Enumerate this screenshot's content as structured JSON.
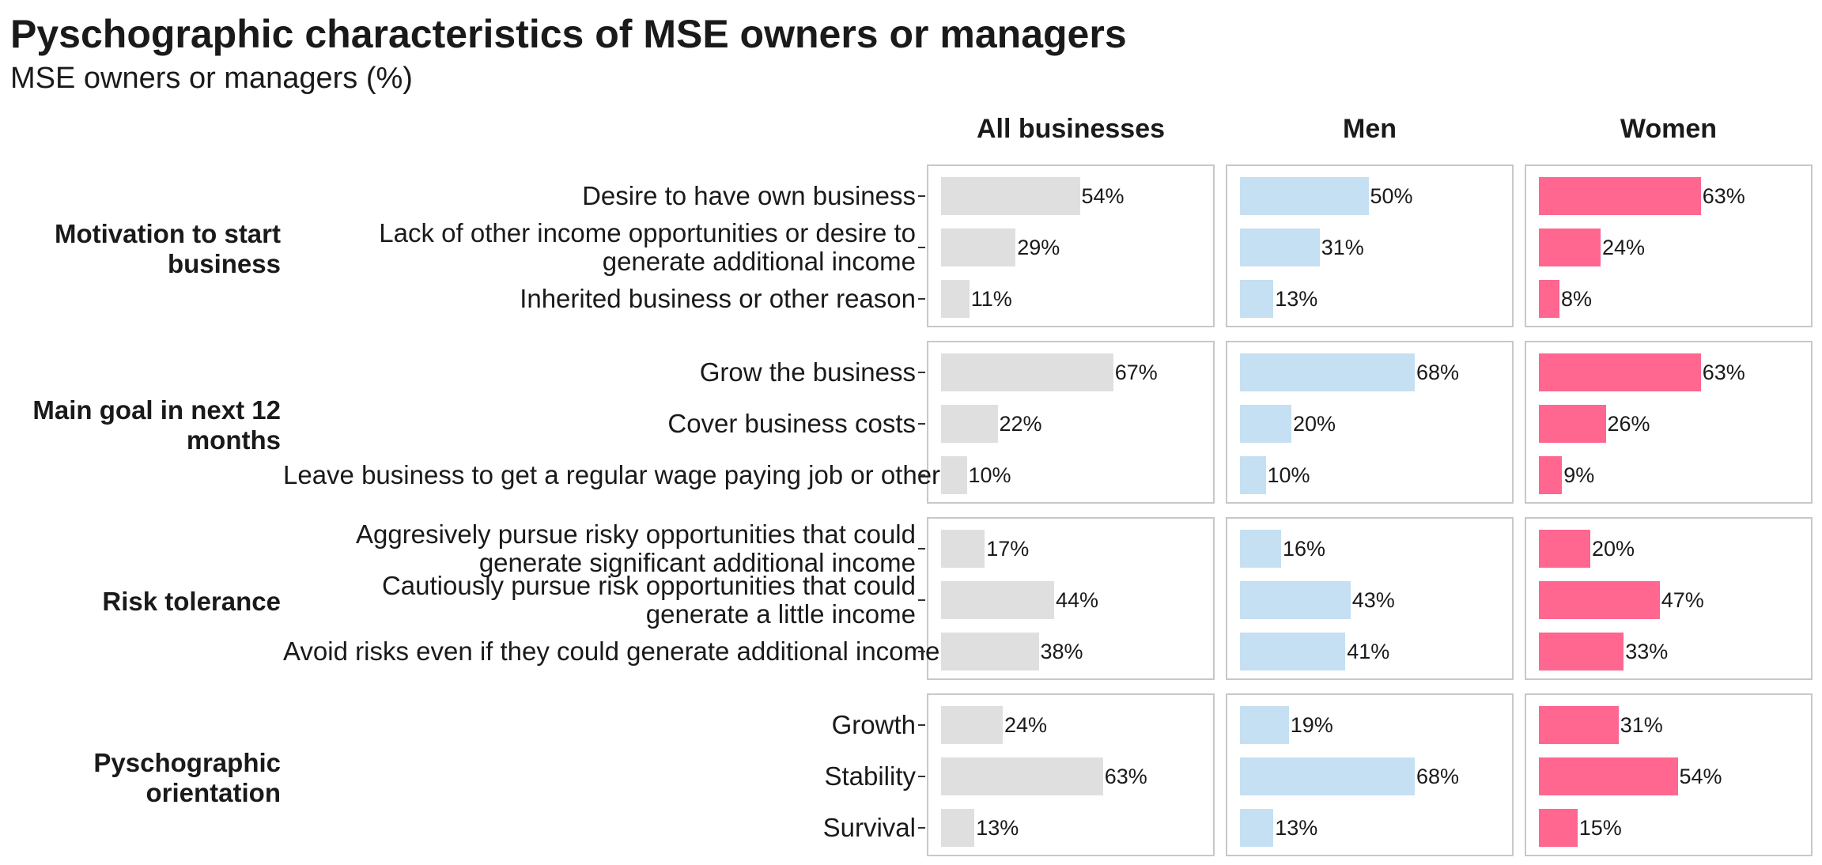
{
  "title": "Pyschographic characteristics of MSE owners or managers",
  "subtitle": "MSE owners or managers (%)",
  "colors": {
    "All businesses": "#dfdfdf",
    "Men": "#c5e0f2",
    "Women": "#ff6690"
  },
  "chart_data": {
    "type": "bar",
    "orientation": "horizontal",
    "title": "Pyschographic characteristics of MSE owners or managers",
    "subtitle": "MSE owners or managers (%)",
    "xlim": [
      0,
      100
    ],
    "series_names": [
      "All businesses",
      "Men",
      "Women"
    ],
    "groups": [
      {
        "label": "Motivation to start business",
        "rows": [
          {
            "label": "Desire to have own business",
            "values": [
              54,
              50,
              63
            ]
          },
          {
            "label": "Lack of other income opportunities or desire to generate additional income",
            "values": [
              29,
              31,
              24
            ]
          },
          {
            "label": "Inherited business or other reason",
            "values": [
              11,
              13,
              8
            ]
          }
        ]
      },
      {
        "label": "Main goal in next 12 months",
        "rows": [
          {
            "label": "Grow the business",
            "values": [
              67,
              68,
              63
            ]
          },
          {
            "label": "Cover business costs",
            "values": [
              22,
              20,
              26
            ]
          },
          {
            "label": "Leave business to get a regular wage paying job or other",
            "values": [
              10,
              10,
              9
            ]
          }
        ]
      },
      {
        "label": "Risk tolerance",
        "rows": [
          {
            "label": "Aggresively pursue risky opportunities that could generate significant additional income",
            "values": [
              17,
              16,
              20
            ]
          },
          {
            "label": "Cautiously pursue risk opportunities that could generate a little income",
            "values": [
              44,
              43,
              47
            ]
          },
          {
            "label": "Avoid risks even if they could generate additional income",
            "values": [
              38,
              41,
              33
            ]
          }
        ]
      },
      {
        "label": "Pyschographic orientation",
        "rows": [
          {
            "label": "Growth",
            "values": [
              24,
              19,
              31
            ]
          },
          {
            "label": "Stability",
            "values": [
              63,
              68,
              54
            ]
          },
          {
            "label": "Survival",
            "values": [
              13,
              13,
              15
            ]
          }
        ]
      }
    ]
  }
}
